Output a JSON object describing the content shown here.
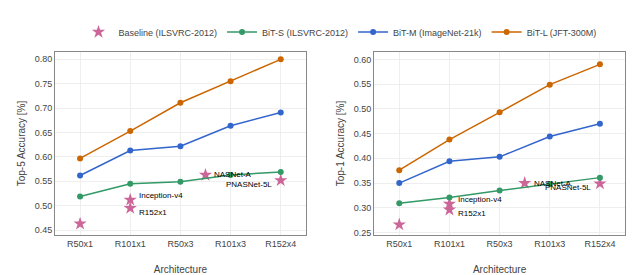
{
  "chart_data": [
    {
      "type": "line",
      "xlabel": "Architecture",
      "ylabel": "Top-5 Accuracy [%]",
      "xlim": [
        -0.5,
        4.5
      ],
      "xticks": [
        {
          "value": 0,
          "label": "R50x1"
        },
        {
          "value": 1,
          "label": "R101x1"
        },
        {
          "value": 2,
          "label": "R50x3"
        },
        {
          "value": 3,
          "label": "R101x3"
        },
        {
          "value": 4,
          "label": "R152x4"
        }
      ],
      "ylim": [
        0.44,
        0.815
      ],
      "yticks": [
        0.45,
        {
          "value": 0.5,
          "label": "0.50"
        },
        0.55,
        {
          "value": 0.6,
          "label": "0.60"
        },
        0.65,
        {
          "value": 0.7,
          "label": "0.70"
        },
        0.75,
        {
          "value": 0.8,
          "label": "0.80"
        }
      ],
      "grid": true,
      "legend": "upper center",
      "series": [
        {
          "name": "Baseline (ILSVRC-2012)",
          "type": "scatter",
          "marker": "star",
          "color": "#cc6699",
          "x": [
            0,
            1,
            1,
            2.5,
            4
          ],
          "values": [
            0.463,
            0.512,
            0.495,
            0.563,
            0.552
          ]
        },
        {
          "name": "BiT-S (ILSVRC-2012)",
          "type": "line",
          "marker": "circle",
          "color": "#339966",
          "x": [
            0,
            1,
            2,
            3,
            4
          ],
          "values": [
            0.519,
            0.545,
            0.549,
            0.563,
            0.569
          ]
        },
        {
          "name": "BiT-M (ImageNet-21k)",
          "type": "line",
          "marker": "circle",
          "color": "#3366cc",
          "x": [
            0,
            1,
            2,
            3,
            4
          ],
          "values": [
            0.562,
            0.613,
            0.622,
            0.664,
            0.691
          ]
        },
        {
          "name": "BiT-L (JFT-300M)",
          "type": "line",
          "marker": "circle",
          "color": "#cc6600",
          "x": [
            0,
            1,
            2,
            3,
            4
          ],
          "values": [
            0.597,
            0.653,
            0.711,
            0.755,
            0.8
          ]
        }
      ],
      "annotations": [
        {
          "text": "Inception-v4",
          "x": 1,
          "y": 0.512
        },
        {
          "text": "R152x1",
          "x": 1,
          "y": 0.495
        },
        {
          "text": "NASNet-A",
          "x": 2.5,
          "y": 0.563
        },
        {
          "text": "PNASNet-5L",
          "x": 4,
          "y": 0.552
        }
      ]
    },
    {
      "type": "line",
      "xlabel": "Architecture",
      "ylabel": "Top-1 Accuracy [%]",
      "xlim": [
        -0.5,
        4.5
      ],
      "xticks": [
        {
          "value": 0,
          "label": "R50x1"
        },
        {
          "value": 1,
          "label": "R101x1"
        },
        {
          "value": 2,
          "label": "R50x3"
        },
        {
          "value": 3,
          "label": "R101x3"
        },
        {
          "value": 4,
          "label": "R152x4"
        }
      ],
      "ylim": [
        0.245,
        0.615
      ],
      "yticks": [
        0.25,
        {
          "value": 0.3,
          "label": "0.30"
        },
        0.35,
        {
          "value": 0.4,
          "label": "0.40"
        },
        0.45,
        {
          "value": 0.5,
          "label": "0.50"
        },
        0.55,
        {
          "value": 0.6,
          "label": "0.60"
        }
      ],
      "grid": true,
      "legend": "upper center",
      "series": [
        {
          "name": "Baseline (ILSVRC-2012)",
          "type": "scatter",
          "marker": "star",
          "color": "#cc6699",
          "x": [
            0,
            1,
            1,
            2.5,
            4
          ],
          "values": [
            0.266,
            0.308,
            0.296,
            0.35,
            0.349
          ]
        },
        {
          "name": "BiT-S (ILSVRC-2012)",
          "type": "line",
          "marker": "circle",
          "color": "#339966",
          "x": [
            0,
            1,
            2,
            3,
            4
          ],
          "values": [
            0.309,
            0.321,
            0.335,
            0.348,
            0.361
          ]
        },
        {
          "name": "BiT-M (ImageNet-21k)",
          "type": "line",
          "marker": "circle",
          "color": "#3366cc",
          "x": [
            0,
            1,
            2,
            3,
            4
          ],
          "values": [
            0.35,
            0.394,
            0.403,
            0.444,
            0.47
          ]
        },
        {
          "name": "BiT-L (JFT-300M)",
          "type": "line",
          "marker": "circle",
          "color": "#cc6600",
          "x": [
            0,
            1,
            2,
            3,
            4
          ],
          "values": [
            0.376,
            0.438,
            0.493,
            0.549,
            0.59
          ]
        }
      ],
      "annotations": [
        {
          "text": "Inception-v4",
          "x": 1,
          "y": 0.308
        },
        {
          "text": "R152x1",
          "x": 1,
          "y": 0.296
        },
        {
          "text": "NASNet-A",
          "x": 2.5,
          "y": 0.35
        },
        {
          "text": "PNASNet-5L",
          "x": 4,
          "y": 0.349
        }
      ]
    }
  ]
}
